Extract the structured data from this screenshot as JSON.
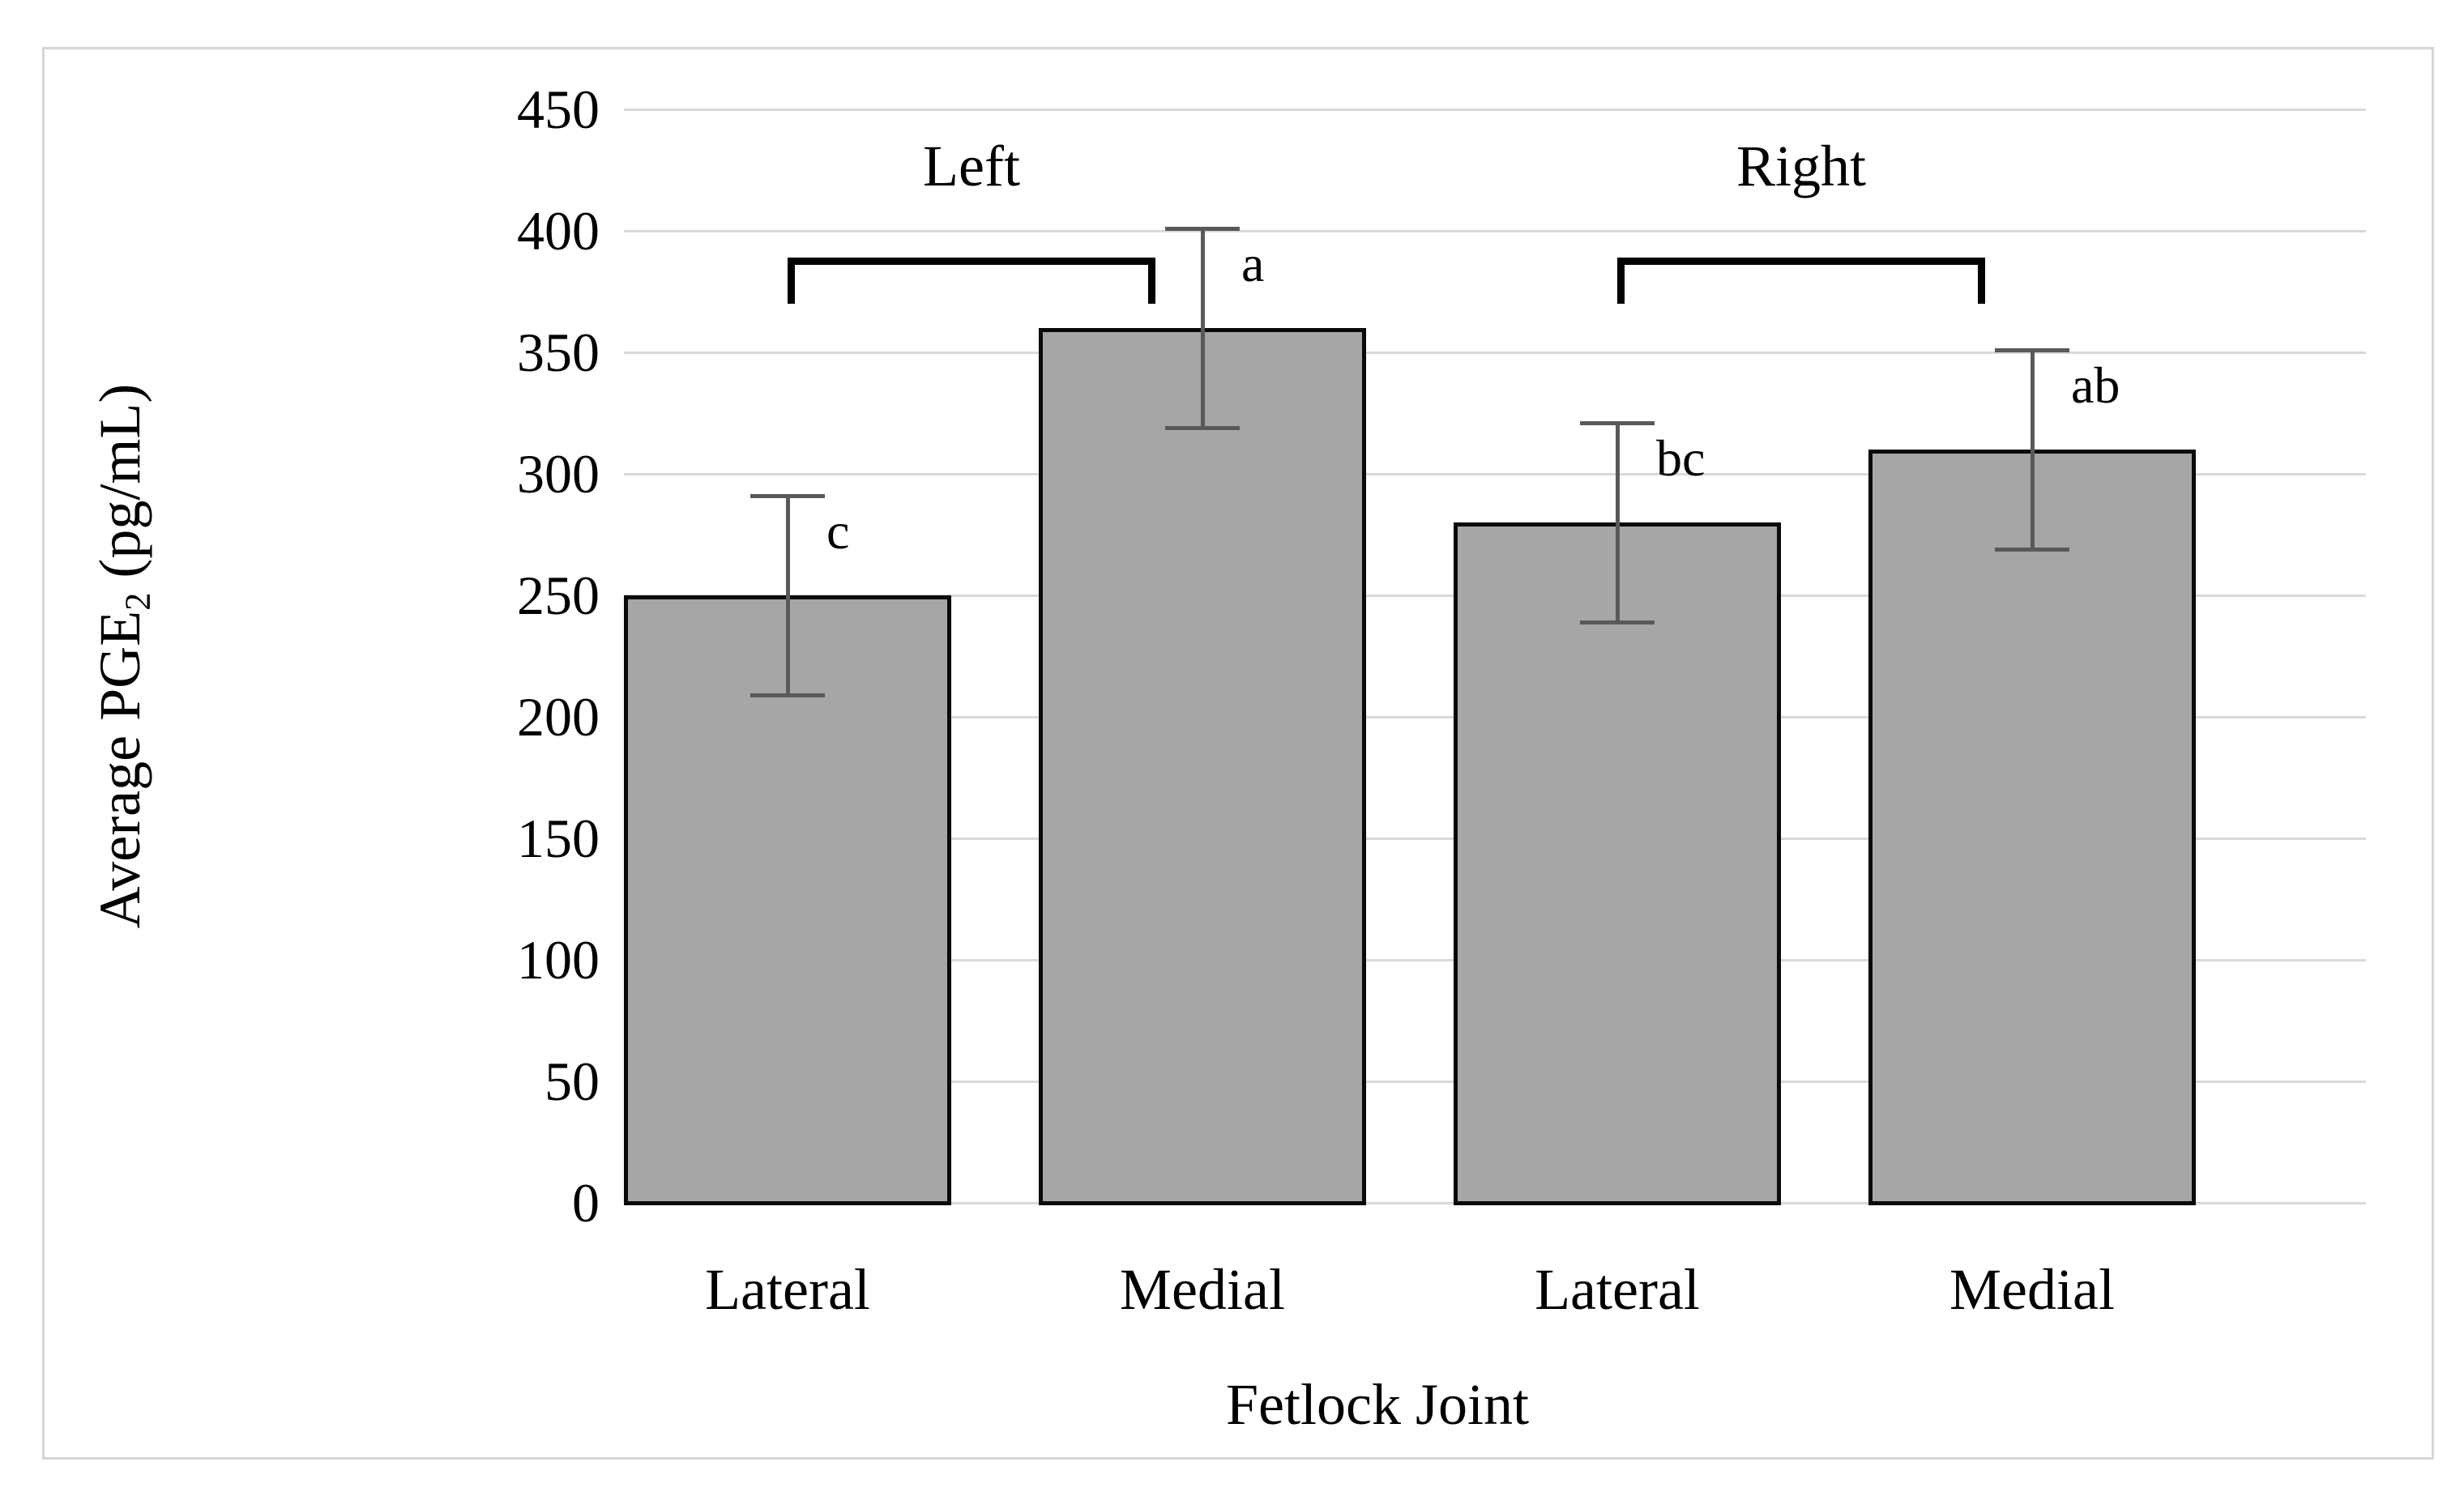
{
  "chart_data": {
    "type": "bar",
    "title": "",
    "xlabel": "Fetlock Joint",
    "ylabel": "Average PGE2 (pg/mL)",
    "ylabel_parts": {
      "prefix": "Average PGE",
      "sub": "2",
      "suffix": " (pg/mL)"
    },
    "ylim": [
      0,
      450
    ],
    "ytick_step": 50,
    "y_ticks": [
      450,
      400,
      350,
      300,
      250,
      200,
      150,
      100,
      50,
      0
    ],
    "grid": true,
    "legend": "none",
    "categories": [
      "Left Lateral",
      "Left Medial",
      "Right Lateral",
      "Right Medial"
    ],
    "x_tick_labels": [
      "Lateral",
      "Medial",
      "Lateral",
      "Medial"
    ],
    "values": [
      250,
      360,
      280,
      310
    ],
    "error_bars": {
      "type": "symmetric",
      "values": [
        41,
        41,
        41,
        41
      ]
    },
    "significance_letters": [
      "c",
      "a",
      "bc",
      "ab"
    ],
    "group_brackets": [
      {
        "label": "Left",
        "from_category": 0,
        "to_category": 1
      },
      {
        "label": "Right",
        "from_category": 2,
        "to_category": 3
      }
    ],
    "colors": {
      "bar_fill": "#a6a6a6",
      "bar_border": "#0a0a0a",
      "error_bar": "#595959",
      "gridline": "#d9d9d9",
      "text": "#000000",
      "figure_border": "#d6d6d6",
      "background": "#ffffff"
    }
  }
}
